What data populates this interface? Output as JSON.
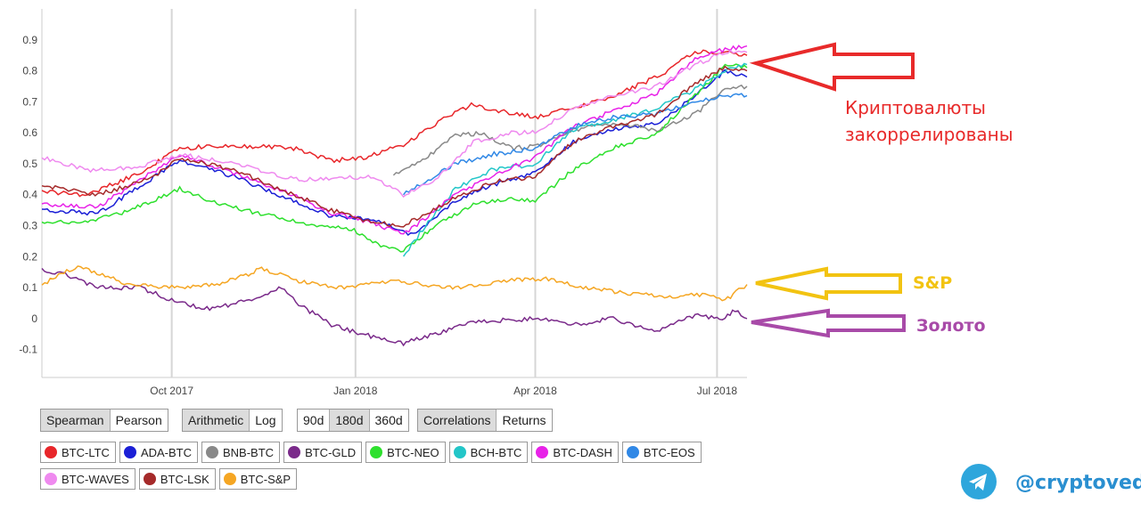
{
  "chart_data": {
    "type": "line",
    "y_ticks": [
      "0.9",
      "0.8",
      "0.7",
      "0.6",
      "0.5",
      "0.4",
      "0.3",
      "0.2",
      "0.1",
      "0",
      "-0.1"
    ],
    "y_tick_values": [
      0.9,
      0.8,
      0.7,
      0.6,
      0.5,
      0.4,
      0.3,
      0.2,
      0.1,
      0,
      -0.1
    ],
    "ylim": [
      -0.19,
      1.0
    ],
    "xlim": [
      "2017-07-28",
      "2018-07-16"
    ],
    "x_ticks": [
      {
        "label": "Oct 2017",
        "date": "2017-10-01"
      },
      {
        "label": "Jan 2018",
        "date": "2018-01-01"
      },
      {
        "label": "Apr 2018",
        "date": "2018-04-01"
      },
      {
        "label": "Jul 2018",
        "date": "2018-07-01"
      }
    ],
    "grid": "vertical",
    "series": [
      {
        "name": "BTC-LTC",
        "color": "#e8262a",
        "points": [
          [
            "2017-07-28",
            0.41
          ],
          [
            "2017-08-20",
            0.4
          ],
          [
            "2017-09-15",
            0.47
          ],
          [
            "2017-10-05",
            0.55
          ],
          [
            "2017-11-01",
            0.56
          ],
          [
            "2017-12-01",
            0.55
          ],
          [
            "2017-12-20",
            0.51
          ],
          [
            "2018-01-05",
            0.52
          ],
          [
            "2018-01-25",
            0.56
          ],
          [
            "2018-02-10",
            0.63
          ],
          [
            "2018-02-28",
            0.69
          ],
          [
            "2018-03-15",
            0.67
          ],
          [
            "2018-04-01",
            0.65
          ],
          [
            "2018-04-20",
            0.68
          ],
          [
            "2018-05-10",
            0.72
          ],
          [
            "2018-06-01",
            0.78
          ],
          [
            "2018-06-20",
            0.86
          ],
          [
            "2018-07-05",
            0.86
          ],
          [
            "2018-07-16",
            0.85
          ]
        ]
      },
      {
        "name": "ADA-BTC",
        "color": "#1b1fd6",
        "points": [
          [
            "2017-07-28",
            0.35
          ],
          [
            "2017-08-25",
            0.34
          ],
          [
            "2017-10-05",
            0.51
          ],
          [
            "2017-11-01",
            0.46
          ],
          [
            "2017-12-01",
            0.38
          ],
          [
            "2017-12-20",
            0.33
          ],
          [
            "2018-01-10",
            0.32
          ],
          [
            "2018-01-30",
            0.27
          ],
          [
            "2018-02-20",
            0.38
          ],
          [
            "2018-03-10",
            0.43
          ],
          [
            "2018-04-01",
            0.47
          ],
          [
            "2018-04-20",
            0.57
          ],
          [
            "2018-05-10",
            0.61
          ],
          [
            "2018-06-01",
            0.63
          ],
          [
            "2018-06-20",
            0.72
          ],
          [
            "2018-07-05",
            0.8
          ],
          [
            "2018-07-16",
            0.78
          ]
        ]
      },
      {
        "name": "BNB-BTC",
        "color": "#888888",
        "points": [
          [
            "2018-01-20",
            0.46
          ],
          [
            "2018-02-05",
            0.52
          ],
          [
            "2018-02-20",
            0.59
          ],
          [
            "2018-03-05",
            0.6
          ],
          [
            "2018-03-20",
            0.55
          ],
          [
            "2018-04-05",
            0.56
          ],
          [
            "2018-04-20",
            0.61
          ],
          [
            "2018-05-10",
            0.63
          ],
          [
            "2018-06-01",
            0.61
          ],
          [
            "2018-06-20",
            0.66
          ],
          [
            "2018-07-05",
            0.74
          ],
          [
            "2018-07-16",
            0.75
          ]
        ]
      },
      {
        "name": "BTC-GLD",
        "color": "#7a2a8a",
        "points": [
          [
            "2017-07-28",
            0.16
          ],
          [
            "2017-08-10",
            0.14
          ],
          [
            "2017-08-25",
            0.1
          ],
          [
            "2017-09-15",
            0.1
          ],
          [
            "2017-10-05",
            0.05
          ],
          [
            "2017-10-20",
            0.03
          ],
          [
            "2017-11-10",
            0.06
          ],
          [
            "2017-11-25",
            0.1
          ],
          [
            "2017-12-05",
            0.04
          ],
          [
            "2017-12-20",
            -0.02
          ],
          [
            "2018-01-10",
            -0.06
          ],
          [
            "2018-01-25",
            -0.08
          ],
          [
            "2018-02-10",
            -0.05
          ],
          [
            "2018-03-01",
            -0.01
          ],
          [
            "2018-04-01",
            0.0
          ],
          [
            "2018-04-20",
            -0.02
          ],
          [
            "2018-05-10",
            0.0
          ],
          [
            "2018-06-01",
            -0.04
          ],
          [
            "2018-06-20",
            0.01
          ],
          [
            "2018-07-05",
            0.0
          ],
          [
            "2018-07-10",
            0.03
          ],
          [
            "2018-07-16",
            0.0
          ]
        ]
      },
      {
        "name": "BTC-NEO",
        "color": "#2ee02e",
        "points": [
          [
            "2017-07-28",
            0.31
          ],
          [
            "2017-08-20",
            0.31
          ],
          [
            "2017-09-10",
            0.35
          ],
          [
            "2017-10-05",
            0.42
          ],
          [
            "2017-10-25",
            0.37
          ],
          [
            "2017-11-20",
            0.33
          ],
          [
            "2017-12-10",
            0.3
          ],
          [
            "2017-12-30",
            0.29
          ],
          [
            "2018-01-15",
            0.23
          ],
          [
            "2018-01-25",
            0.22
          ],
          [
            "2018-02-10",
            0.3
          ],
          [
            "2018-03-01",
            0.37
          ],
          [
            "2018-03-20",
            0.39
          ],
          [
            "2018-04-01",
            0.38
          ],
          [
            "2018-04-20",
            0.48
          ],
          [
            "2018-05-10",
            0.55
          ],
          [
            "2018-06-01",
            0.6
          ],
          [
            "2018-06-20",
            0.72
          ],
          [
            "2018-07-05",
            0.82
          ],
          [
            "2018-07-16",
            0.81
          ]
        ]
      },
      {
        "name": "BCH-BTC",
        "color": "#23c6c8",
        "points": [
          [
            "2018-01-25",
            0.2
          ],
          [
            "2018-02-05",
            0.3
          ],
          [
            "2018-02-20",
            0.42
          ],
          [
            "2018-03-10",
            0.48
          ],
          [
            "2018-04-01",
            0.5
          ],
          [
            "2018-04-20",
            0.61
          ],
          [
            "2018-05-10",
            0.64
          ],
          [
            "2018-06-01",
            0.68
          ],
          [
            "2018-06-20",
            0.74
          ],
          [
            "2018-07-05",
            0.8
          ],
          [
            "2018-07-16",
            0.82
          ]
        ]
      },
      {
        "name": "BTC-DASH",
        "color": "#e822e8",
        "points": [
          [
            "2017-07-28",
            0.37
          ],
          [
            "2017-08-25",
            0.36
          ],
          [
            "2017-10-05",
            0.53
          ],
          [
            "2017-11-01",
            0.47
          ],
          [
            "2017-12-01",
            0.4
          ],
          [
            "2017-12-20",
            0.34
          ],
          [
            "2018-01-10",
            0.31
          ],
          [
            "2018-01-25",
            0.27
          ],
          [
            "2018-02-20",
            0.4
          ],
          [
            "2018-03-10",
            0.46
          ],
          [
            "2018-04-01",
            0.52
          ],
          [
            "2018-04-20",
            0.62
          ],
          [
            "2018-05-10",
            0.67
          ],
          [
            "2018-06-01",
            0.73
          ],
          [
            "2018-06-20",
            0.84
          ],
          [
            "2018-07-05",
            0.87
          ],
          [
            "2018-07-16",
            0.88
          ]
        ]
      },
      {
        "name": "BTC-EOS",
        "color": "#3088e6",
        "points": [
          [
            "2018-01-25",
            0.4
          ],
          [
            "2018-02-05",
            0.44
          ],
          [
            "2018-02-20",
            0.5
          ],
          [
            "2018-03-10",
            0.53
          ],
          [
            "2018-04-01",
            0.55
          ],
          [
            "2018-04-20",
            0.62
          ],
          [
            "2018-05-10",
            0.65
          ],
          [
            "2018-06-01",
            0.66
          ],
          [
            "2018-06-20",
            0.7
          ],
          [
            "2018-07-05",
            0.72
          ],
          [
            "2018-07-16",
            0.72
          ]
        ]
      },
      {
        "name": "BTC-WAVES",
        "color": "#ef8aef",
        "points": [
          [
            "2017-07-28",
            0.52
          ],
          [
            "2017-08-20",
            0.48
          ],
          [
            "2017-09-15",
            0.49
          ],
          [
            "2017-10-05",
            0.53
          ],
          [
            "2017-11-01",
            0.5
          ],
          [
            "2017-12-01",
            0.45
          ],
          [
            "2017-12-20",
            0.45
          ],
          [
            "2018-01-10",
            0.46
          ],
          [
            "2018-01-25",
            0.4
          ],
          [
            "2018-02-10",
            0.45
          ],
          [
            "2018-03-01",
            0.57
          ],
          [
            "2018-03-20",
            0.6
          ],
          [
            "2018-04-01",
            0.6
          ],
          [
            "2018-04-20",
            0.68
          ],
          [
            "2018-05-10",
            0.72
          ],
          [
            "2018-06-01",
            0.75
          ],
          [
            "2018-06-20",
            0.82
          ],
          [
            "2018-07-05",
            0.86
          ],
          [
            "2018-07-16",
            0.86
          ]
        ]
      },
      {
        "name": "BTC-LSK",
        "color": "#a52a2a",
        "points": [
          [
            "2017-07-28",
            0.43
          ],
          [
            "2017-08-25",
            0.4
          ],
          [
            "2017-09-20",
            0.45
          ],
          [
            "2017-10-05",
            0.52
          ],
          [
            "2017-11-01",
            0.48
          ],
          [
            "2017-12-01",
            0.4
          ],
          [
            "2017-12-20",
            0.35
          ],
          [
            "2018-01-10",
            0.31
          ],
          [
            "2018-01-25",
            0.3
          ],
          [
            "2018-02-20",
            0.39
          ],
          [
            "2018-03-10",
            0.44
          ],
          [
            "2018-04-01",
            0.46
          ],
          [
            "2018-04-20",
            0.57
          ],
          [
            "2018-05-10",
            0.62
          ],
          [
            "2018-06-01",
            0.66
          ],
          [
            "2018-06-20",
            0.76
          ],
          [
            "2018-07-05",
            0.81
          ],
          [
            "2018-07-16",
            0.8
          ]
        ]
      },
      {
        "name": "BTC-S&P",
        "color": "#f5a623",
        "points": [
          [
            "2017-07-28",
            0.11
          ],
          [
            "2017-08-15",
            0.17
          ],
          [
            "2017-09-10",
            0.11
          ],
          [
            "2017-10-05",
            0.1
          ],
          [
            "2017-10-25",
            0.11
          ],
          [
            "2017-11-15",
            0.16
          ],
          [
            "2017-12-05",
            0.12
          ],
          [
            "2017-12-25",
            0.1
          ],
          [
            "2018-01-20",
            0.12
          ],
          [
            "2018-02-20",
            0.1
          ],
          [
            "2018-03-15",
            0.12
          ],
          [
            "2018-04-05",
            0.13
          ],
          [
            "2018-04-25",
            0.1
          ],
          [
            "2018-05-20",
            0.08
          ],
          [
            "2018-06-10",
            0.07
          ],
          [
            "2018-06-25",
            0.08
          ],
          [
            "2018-07-05",
            0.06
          ],
          [
            "2018-07-16",
            0.11
          ]
        ]
      }
    ]
  },
  "controls": {
    "method": {
      "options": [
        "Spearman",
        "Pearson"
      ],
      "active": 0
    },
    "scale": {
      "options": [
        "Arithmetic",
        "Log"
      ],
      "active": 0
    },
    "window": {
      "options": [
        "90d",
        "180d",
        "360d"
      ],
      "active": 1
    },
    "view": {
      "options": [
        "Correlations",
        "Returns"
      ],
      "active": 0
    }
  },
  "legend": {
    "row1": [
      {
        "name": "BTC-LTC",
        "color": "#e8262a"
      },
      {
        "name": "ADA-BTC",
        "color": "#1b1fd6"
      },
      {
        "name": "BNB-BTC",
        "color": "#888888"
      },
      {
        "name": "BTC-GLD",
        "color": "#7a2a8a"
      },
      {
        "name": "BTC-NEO",
        "color": "#2ee02e"
      },
      {
        "name": "BCH-BTC",
        "color": "#23c6c8"
      },
      {
        "name": "BTC-DASH",
        "color": "#e822e8"
      },
      {
        "name": "BTC-EOS",
        "color": "#3088e6"
      }
    ],
    "row2": [
      {
        "name": "BTC-WAVES",
        "color": "#ef8aef"
      },
      {
        "name": "BTC-LSK",
        "color": "#a52a2a"
      },
      {
        "name": "BTC-S&P",
        "color": "#f5a623"
      }
    ]
  },
  "annotations": {
    "crypto_line1": "Криптовалюты",
    "crypto_line2": "закоррелированы",
    "crypto_color": "#e82a2a",
    "sp_label": "S&P",
    "sp_color": "#f2c311",
    "gold_label": "Золото",
    "gold_color": "#a84aa8"
  },
  "branding": {
    "icon": "telegram-icon",
    "handle": "@cryptoved",
    "color": "#2a8fd0"
  }
}
